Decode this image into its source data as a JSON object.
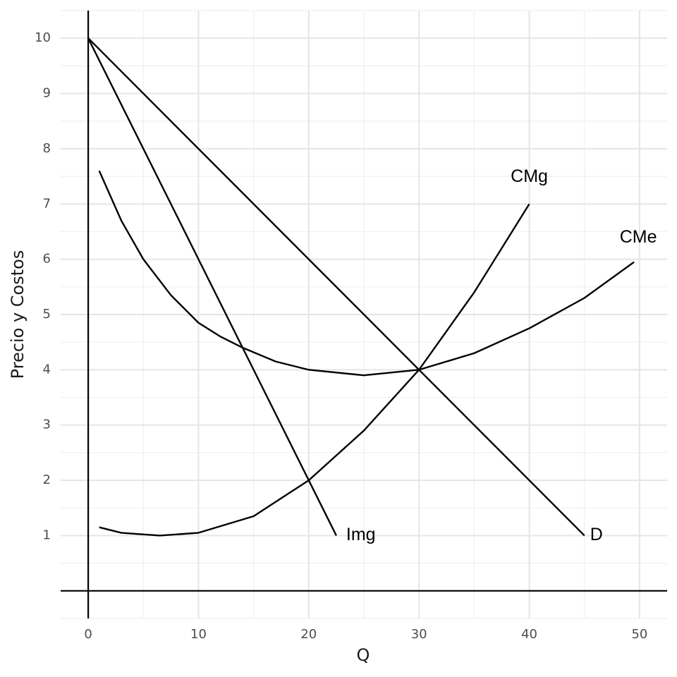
{
  "chart_data": {
    "type": "line",
    "x_label": "Q",
    "y_label": "Precio y Costos",
    "xlim": [
      -2.5,
      52.5
    ],
    "ylim": [
      -0.5,
      10.5
    ],
    "xticks": [
      0,
      10,
      20,
      30,
      40,
      50
    ],
    "yticks": [
      1,
      2,
      3,
      4,
      5,
      6,
      7,
      8,
      9,
      10
    ],
    "grid": true,
    "series": [
      {
        "name": "D",
        "color": "#000000",
        "x": [
          0,
          45
        ],
        "values": [
          10,
          1
        ]
      },
      {
        "name": "Img",
        "color": "#000000",
        "x": [
          0,
          22.5
        ],
        "values": [
          10,
          1
        ]
      },
      {
        "name": "CMg",
        "color": "#000000",
        "x": [
          1,
          3,
          6.5,
          10,
          15,
          20,
          25,
          30,
          35,
          40
        ],
        "values": [
          1.15,
          1.05,
          1.0,
          1.05,
          1.35,
          2.0,
          2.9,
          4.0,
          5.4,
          7.0
        ]
      },
      {
        "name": "CMe",
        "color": "#000000",
        "x": [
          1,
          3,
          5,
          7.5,
          10,
          12,
          14,
          17,
          20,
          25,
          30,
          35,
          40,
          45,
          49.5
        ],
        "values": [
          7.6,
          6.7,
          6.0,
          5.35,
          4.85,
          4.6,
          4.4,
          4.15,
          4.0,
          3.9,
          4.0,
          4.3,
          4.75,
          5.3,
          5.95
        ]
      }
    ]
  }
}
